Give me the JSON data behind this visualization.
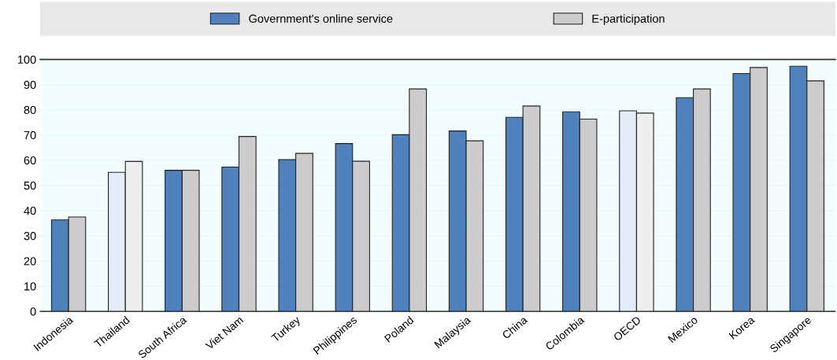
{
  "chart_data": {
    "type": "bar",
    "categories": [
      "Indonesia",
      "Thailand",
      "South Africa",
      "Viet Nam",
      "Turkey",
      "Philippines",
      "Poland",
      "Malaysia",
      "China",
      "Colombia",
      "OECD",
      "Mexico",
      "Korea",
      "Singapore"
    ],
    "series": [
      {
        "name": "Government's online service",
        "color": "#4f81bd",
        "colors": [
          "#4f81bd",
          "#e4ecf7",
          "#4f81bd",
          "#4f81bd",
          "#4f81bd",
          "#4f81bd",
          "#4f81bd",
          "#4f81bd",
          "#4f81bd",
          "#4f81bd",
          "#e4ecf7",
          "#4f81bd",
          "#4f81bd",
          "#4f81bd"
        ],
        "values": [
          36.3,
          55.2,
          56,
          57.3,
          60.2,
          66.6,
          70.1,
          71.6,
          77,
          79.2,
          79.6,
          84.8,
          94.4,
          97.3
        ]
      },
      {
        "name": "E-participation",
        "color": "#cccccc",
        "colors": [
          "#cccccc",
          "#eeeeee",
          "#cccccc",
          "#cccccc",
          "#cccccc",
          "#cccccc",
          "#cccccc",
          "#cccccc",
          "#cccccc",
          "#cccccc",
          "#eeeeee",
          "#cccccc",
          "#cccccc",
          "#cccccc"
        ],
        "values": [
          37.5,
          59.5,
          56,
          69.4,
          62.7,
          59.6,
          88.3,
          67.7,
          81.5,
          76.3,
          78.7,
          88.3,
          96.8,
          91.5
        ]
      }
    ],
    "ylim": [
      0,
      100
    ],
    "yticks": [
      0,
      10,
      20,
      30,
      40,
      50,
      60,
      70,
      80,
      90,
      100
    ],
    "grid": "y",
    "legend": "top"
  }
}
